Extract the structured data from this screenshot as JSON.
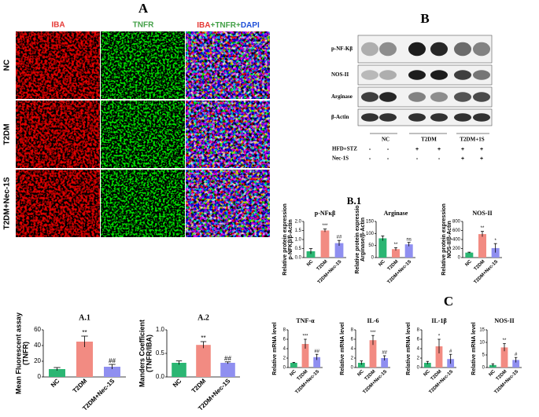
{
  "panel_a": {
    "label": "A",
    "columns": [
      "IBA",
      "TNFR"
    ],
    "merge_parts": [
      "IBA",
      "+TNFR+",
      "DAPI"
    ],
    "rows": [
      "NC",
      "T2DM",
      "T2DM+Nec-1S"
    ]
  },
  "panel_b": {
    "label": "B",
    "bands": [
      "p-NF-Kβ",
      "NOS-II",
      "Arginase",
      "β-Actin"
    ],
    "groups": [
      "NC",
      "T2DM",
      "T2DM+1S"
    ],
    "treatments": [
      {
        "name": "HFD+STZ",
        "signs": [
          "-",
          "-",
          "+",
          "+",
          "+",
          "+"
        ]
      },
      {
        "name": "Nec-1S",
        "signs": [
          "-",
          "-",
          "-",
          "-",
          "+",
          "+"
        ]
      }
    ]
  },
  "panel_b1_label": "B.1",
  "panel_c_label": "C",
  "chart_data": [
    {
      "type": "bar",
      "title": "A.1",
      "ylabel": [
        "Mean Fluorescent assay",
        "(TNFR)"
      ],
      "categories": [
        "NC",
        "T2DM",
        "T2DM+Nec-1S"
      ],
      "values": [
        10,
        45,
        13
      ],
      "errors": [
        2,
        7,
        3
      ],
      "annotations": [
        null,
        "**",
        "##"
      ],
      "colors": [
        "#2bb673",
        "#f28b82",
        "#8f8ff0"
      ],
      "ylim": [
        0,
        60
      ],
      "yticks": [
        0,
        20,
        40,
        60
      ]
    },
    {
      "type": "bar",
      "title": "A.2",
      "ylabel": [
        "Manders Coefficient",
        "(TNFR/IBA)"
      ],
      "categories": [
        "NC",
        "T2DM",
        "T2DM+Nec-1S"
      ],
      "values": [
        0.3,
        0.68,
        0.3
      ],
      "errors": [
        0.04,
        0.07,
        0.02
      ],
      "annotations": [
        null,
        "**",
        "##"
      ],
      "colors": [
        "#2bb673",
        "#f28b82",
        "#8f8ff0"
      ],
      "ylim": [
        0,
        1
      ],
      "yticks": [
        {
          "value": 0,
          "label": "0.0"
        },
        0.5,
        {
          "value": 1,
          "label": "1.0"
        }
      ]
    },
    {
      "type": "bar",
      "title": "p-NFκβ",
      "ylabel": [
        "Relative protein expression",
        "p-NFKβ/β-Actin"
      ],
      "categories": [
        "NC",
        "T2DM",
        "T2DM+Nec-1S"
      ],
      "values": [
        0.35,
        1.5,
        0.8
      ],
      "errors": [
        0.15,
        0.08,
        0.15
      ],
      "annotations": [
        null,
        "***",
        "##"
      ],
      "colors": [
        "#2bb673",
        "#f28b82",
        "#8f8ff0"
      ],
      "ylim": [
        0,
        2
      ],
      "yticks": [
        {
          "value": 0,
          "label": "0.0"
        },
        0.5,
        {
          "value": 1,
          "label": "1.0"
        },
        1.5,
        {
          "value": 2,
          "label": "2.0"
        }
      ]
    },
    {
      "type": "bar",
      "title": "Arginase",
      "ylabel": [
        "Relative protein expressio",
        "Arginase/β-Actin"
      ],
      "categories": [
        "NC",
        "T2DM",
        "T2DM+Nec-1S"
      ],
      "values": [
        80,
        35,
        55
      ],
      "errors": [
        10,
        6,
        8
      ],
      "annotations": [
        null,
        "**",
        "ns"
      ],
      "colors": [
        "#2bb673",
        "#f28b82",
        "#8f8ff0"
      ],
      "ylim": [
        0,
        150
      ],
      "yticks": [
        0,
        50,
        100,
        150
      ]
    },
    {
      "type": "bar",
      "title": "NOS-II",
      "ylabel": [
        "Relative protein expression",
        "NOS-II/β-Actin"
      ],
      "categories": [
        "NC",
        "T2DM",
        "T2DM+Nec-1S"
      ],
      "values": [
        110,
        520,
        210
      ],
      "errors": [
        10,
        60,
        100
      ],
      "annotations": [
        null,
        "**",
        "*"
      ],
      "colors": [
        "#2bb673",
        "#f28b82",
        "#8f8ff0"
      ],
      "ylim": [
        0,
        800
      ],
      "yticks": [
        0,
        200,
        400,
        600,
        800
      ]
    },
    {
      "type": "bar",
      "title": "TNF-α",
      "ylabel": [
        "Relative mRNA level"
      ],
      "categories": [
        "NC",
        "T2DM",
        "T2DM+Nec-1S"
      ],
      "values": [
        1,
        5,
        2.2
      ],
      "errors": [
        0.1,
        1,
        0.6
      ],
      "annotations": [
        null,
        "***",
        "##"
      ],
      "colors": [
        "#2bb673",
        "#f28b82",
        "#8f8ff0"
      ],
      "ylim": [
        0,
        8
      ],
      "yticks": [
        0,
        2,
        4,
        6,
        8
      ]
    },
    {
      "type": "bar",
      "title": "IL-6",
      "ylabel": [
        "Relative mRNA level"
      ],
      "categories": [
        "NC",
        "T2DM",
        "T2DM+Nec-1S"
      ],
      "values": [
        1,
        5.8,
        2
      ],
      "errors": [
        0.4,
        1,
        0.5
      ],
      "annotations": [
        null,
        "***",
        "##"
      ],
      "colors": [
        "#2bb673",
        "#f28b82",
        "#8f8ff0"
      ],
      "ylim": [
        0,
        8
      ],
      "yticks": [
        0,
        2,
        4,
        6,
        8
      ]
    },
    {
      "type": "bar",
      "title": "IL-1β",
      "ylabel": [
        "Relative mRNA level"
      ],
      "categories": [
        "NC",
        "T2DM",
        "T2DM+Nec-1S"
      ],
      "values": [
        1,
        4.5,
        1.8
      ],
      "errors": [
        0.3,
        1.5,
        1
      ],
      "annotations": [
        null,
        "*",
        "#"
      ],
      "colors": [
        "#2bb673",
        "#f28b82",
        "#8f8ff0"
      ],
      "ylim": [
        0,
        8
      ],
      "yticks": [
        0,
        2,
        4,
        6,
        8
      ]
    },
    {
      "type": "bar",
      "title": "NOS-II",
      "ylabel": [
        "Relative mRNA level"
      ],
      "categories": [
        "NC",
        "T2DM",
        "T2DM+Nec-1S"
      ],
      "values": [
        1,
        8,
        3
      ],
      "errors": [
        0.5,
        1.5,
        1
      ],
      "annotations": [
        null,
        "**",
        "#"
      ],
      "colors": [
        "#2bb673",
        "#f28b82",
        "#8f8ff0"
      ],
      "ylim": [
        0,
        15
      ],
      "yticks": [
        0,
        5,
        10,
        15
      ]
    }
  ]
}
